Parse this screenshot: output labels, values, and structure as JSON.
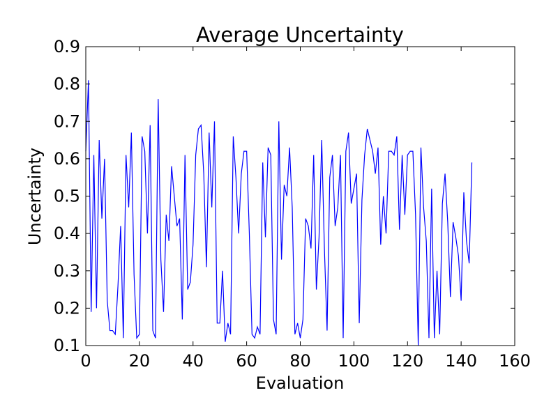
{
  "chart_data": {
    "type": "line",
    "title": "Average Uncertainty",
    "xlabel": "Evaluation",
    "ylabel": "Uncertainty",
    "xlim": [
      0,
      160
    ],
    "ylim": [
      0.1,
      0.9
    ],
    "xticks": [
      0,
      20,
      40,
      60,
      80,
      100,
      120,
      140,
      160
    ],
    "yticks": [
      0.1,
      0.2,
      0.3,
      0.4,
      0.5,
      0.6,
      0.7,
      0.8,
      0.9
    ],
    "xtick_labels": [
      "0",
      "20",
      "40",
      "60",
      "80",
      "100",
      "120",
      "140",
      "160"
    ],
    "ytick_labels": [
      "0.1",
      "0.2",
      "0.3",
      "0.4",
      "0.5",
      "0.6",
      "0.7",
      "0.8",
      "0.9"
    ],
    "grid": false,
    "series": [
      {
        "color": "#0000ff",
        "y": [
          0.62,
          0.81,
          0.19,
          0.61,
          0.2,
          0.65,
          0.44,
          0.6,
          0.22,
          0.14,
          0.14,
          0.13,
          0.26,
          0.42,
          0.12,
          0.61,
          0.47,
          0.67,
          0.29,
          0.12,
          0.13,
          0.66,
          0.62,
          0.4,
          0.69,
          0.14,
          0.12,
          0.76,
          0.33,
          0.19,
          0.45,
          0.38,
          0.58,
          0.5,
          0.42,
          0.44,
          0.17,
          0.61,
          0.25,
          0.27,
          0.37,
          0.61,
          0.68,
          0.69,
          0.56,
          0.31,
          0.67,
          0.47,
          0.7,
          0.16,
          0.16,
          0.3,
          0.11,
          0.16,
          0.13,
          0.66,
          0.55,
          0.4,
          0.56,
          0.62,
          0.62,
          0.4,
          0.13,
          0.12,
          0.15,
          0.13,
          0.59,
          0.39,
          0.63,
          0.61,
          0.17,
          0.13,
          0.7,
          0.33,
          0.53,
          0.5,
          0.63,
          0.47,
          0.13,
          0.16,
          0.12,
          0.17,
          0.44,
          0.42,
          0.36,
          0.61,
          0.25,
          0.39,
          0.65,
          0.36,
          0.14,
          0.55,
          0.61,
          0.42,
          0.47,
          0.61,
          0.12,
          0.62,
          0.67,
          0.48,
          0.52,
          0.56,
          0.16,
          0.49,
          0.61,
          0.68,
          0.65,
          0.62,
          0.56,
          0.63,
          0.37,
          0.5,
          0.4,
          0.62,
          0.62,
          0.61,
          0.66,
          0.41,
          0.61,
          0.45,
          0.61,
          0.62,
          0.62,
          0.45,
          0.1,
          0.63,
          0.47,
          0.38,
          0.12,
          0.52,
          0.12,
          0.3,
          0.13,
          0.48,
          0.56,
          0.43,
          0.23,
          0.43,
          0.39,
          0.34,
          0.22,
          0.51,
          0.38,
          0.32,
          0.59
        ]
      }
    ]
  }
}
